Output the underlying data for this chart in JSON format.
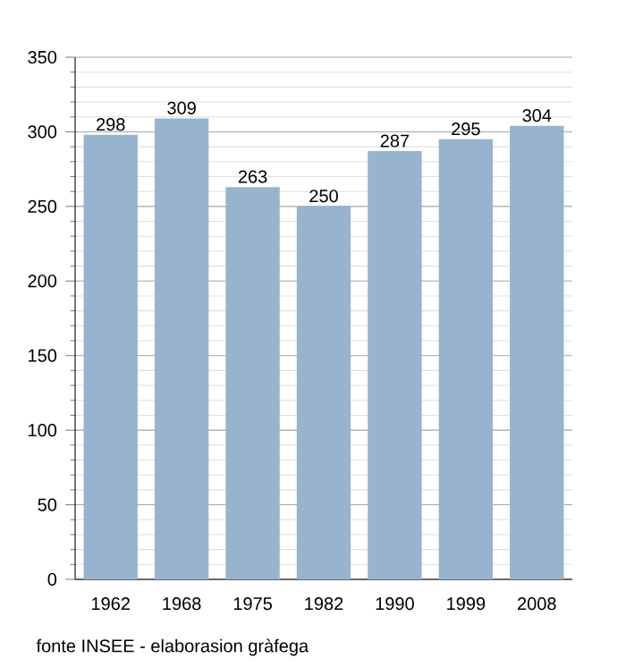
{
  "chart_data": {
    "type": "bar",
    "categories": [
      "1962",
      "1968",
      "1975",
      "1982",
      "1990",
      "1999",
      "2008"
    ],
    "values": [
      298,
      309,
      263,
      250,
      287,
      295,
      304
    ],
    "color": "#98b3cd",
    "ylim": [
      0,
      350
    ],
    "yticks": [
      0,
      50,
      100,
      150,
      200,
      250,
      300,
      350
    ],
    "grid": "y",
    "data_labels": true,
    "annotations": [
      "fonte INSEE - elaborasion gràfega"
    ]
  }
}
